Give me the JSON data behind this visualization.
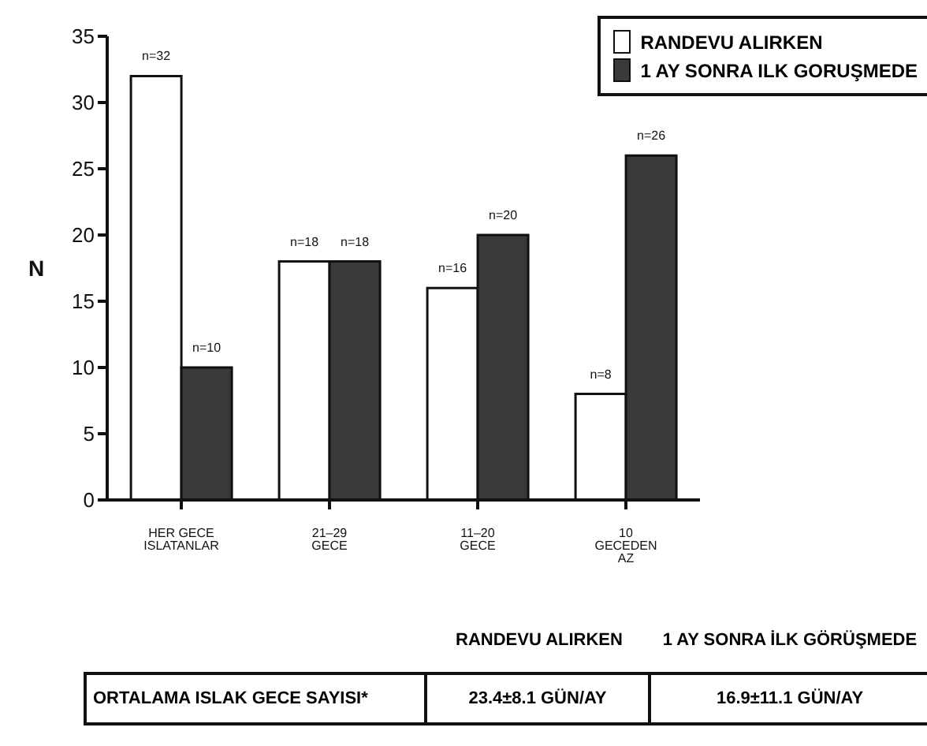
{
  "chart_data": {
    "type": "bar",
    "ylabel": "N",
    "categories": [
      "HER GECE ISLATANLAR",
      "21–29 GECE",
      "11–20 GECE",
      "10 GECEDEN AZ"
    ],
    "series": [
      {
        "name": "RANDEVU ALIRKEN",
        "color": "#ffffff",
        "values": [
          32,
          18,
          16,
          8
        ],
        "value_labels": [
          "n=32",
          "n=18",
          "n=16",
          "n=8"
        ]
      },
      {
        "name": "1 AY SONRA ILK GORUŞMEDE",
        "color": "#3a3a3a",
        "values": [
          10,
          18,
          20,
          26
        ],
        "value_labels": [
          "n=10",
          "n=18",
          "n=20",
          "n=26"
        ]
      }
    ],
    "ylim": [
      0,
      35
    ],
    "yticks": [
      0,
      5,
      10,
      15,
      20,
      25,
      30,
      35
    ],
    "grid": false,
    "legend": "top right",
    "annotations": [
      "RANDEVU ALIRKEN",
      "1 AY SONRA İLK GÖRÜŞMEDE",
      "ORTALAMA ISLAK GECE SAYISI*",
      "23.4±8.1 GÜN/AY",
      "16.9±11.1 GÜN/AY"
    ]
  }
}
